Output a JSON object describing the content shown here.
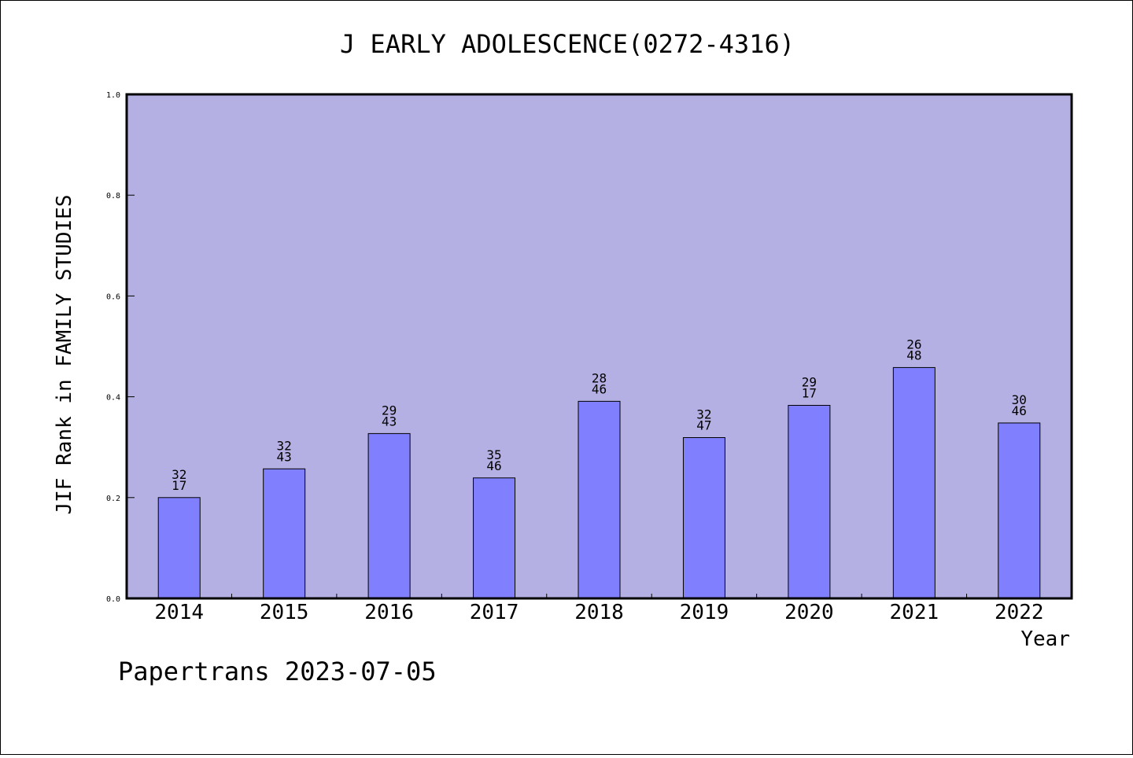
{
  "colors": {
    "plot_background": "#b5b0e3",
    "bar_fill": "#8080ff",
    "frame": "#000000"
  },
  "footer_text": "Papertrans 2023-07-05",
  "chart_data": {
    "type": "bar",
    "title": "J EARLY ADOLESCENCE(0272-4316)",
    "xlabel": "Year",
    "ylabel": "JIF Rank in FAMILY STUDIES",
    "ylim": [
      0.0,
      1.0
    ],
    "yticks": [
      "0.0",
      "0.2",
      "0.4",
      "0.6",
      "0.8",
      "1.0"
    ],
    "grid": false,
    "categories": [
      "2014",
      "2015",
      "2016",
      "2017",
      "2018",
      "2019",
      "2020",
      "2021",
      "2022"
    ],
    "values": [
      0.2,
      0.257,
      0.327,
      0.239,
      0.391,
      0.319,
      0.383,
      0.458,
      0.348
    ],
    "labels_top": [
      "32",
      "32",
      "29",
      "35",
      "28",
      "32",
      "29",
      "26",
      "30"
    ],
    "labels_bottom": [
      "17",
      "43",
      "43",
      "46",
      "46",
      "47",
      "17",
      "48",
      "46"
    ]
  }
}
